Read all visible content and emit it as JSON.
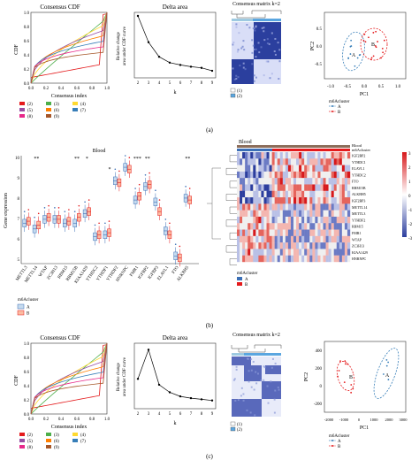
{
  "panel_a": {
    "label": "(a)",
    "cdf": {
      "title": "Consensus CDF",
      "xlabel": "Consensus index",
      "ylabel": "CDF",
      "xticks": [
        "0.0",
        "0.2",
        "0.4",
        "0.6",
        "0.8",
        "1.0"
      ],
      "yticks": [
        "0.0",
        "0.2",
        "0.4",
        "0.6",
        "0.8",
        "1.0"
      ],
      "legend": [
        "(2)",
        "(3)",
        "(4)",
        "(5)",
        "(6)",
        "(7)",
        "(8)",
        "(9)"
      ],
      "colors": [
        "#e41a1c",
        "#4daf4a",
        "#ffd92f",
        "#984ea3",
        "#ff7f00",
        "#377eb8",
        "#e7298a",
        "#a65628"
      ]
    },
    "delta": {
      "title": "Delta area",
      "xlabel": "k",
      "ylabel_line1": "Relative change",
      "ylabel_line2": "area under CDF curve",
      "xticks": [
        "2",
        "3",
        "4",
        "5",
        "6",
        "7",
        "8",
        "9"
      ],
      "values": [
        1.0,
        0.55,
        0.3,
        0.2,
        0.16,
        0.13,
        0.11,
        0.06
      ]
    },
    "matrix": {
      "title": "Consensus matrix k=2",
      "legend": [
        "(1)",
        "(2)"
      ]
    },
    "pca": {
      "xlabel": "PC1",
      "ylabel": "PC2",
      "xticks": [
        "-1.0",
        "-0.5",
        "0.0",
        "0.5",
        "1.0"
      ],
      "yticks": [
        "0.5",
        "0.0",
        "-0.5"
      ],
      "cluster_a": "A",
      "cluster_b": "B",
      "legend_title": "m6Acluster",
      "legend": [
        "A",
        "B"
      ]
    }
  },
  "panel_b": {
    "label": "(b)",
    "boxplot": {
      "title": "Blood",
      "ylabel": "Gene expression",
      "yticks": [
        "10",
        "9",
        "8",
        "7",
        "6",
        "5"
      ],
      "genes": [
        "METTL3",
        "METTL14",
        "WTAP",
        "ZC3H13",
        "RBM15",
        "RBM15B",
        "KIAA1429",
        "YTHDC2",
        "YTHDF1",
        "YTHDF2",
        "HNRNPC",
        "FMR1",
        "IGFBP2",
        "IGFBP3",
        "ELAVL1",
        "FTO",
        "ALKBH5"
      ],
      "significance": [
        "",
        "**",
        "",
        "",
        "",
        "**",
        "*",
        "",
        "",
        "",
        "",
        "***",
        "**",
        "",
        "",
        "",
        "**"
      ],
      "extra_sig": "*",
      "legend_title": "m6Acluster",
      "legend": [
        "A",
        "B"
      ]
    },
    "heatmap": {
      "title": "Blood",
      "annotation_label": "m6Acluster",
      "rows": [
        "IGF2BP2",
        "YTHDC1",
        "ELAVL1",
        "YTHDC2",
        "FTO",
        "RBM15B",
        "ALKBH5",
        "IGF2BP3",
        "METTL14",
        "METTL3",
        "YTHDF2",
        "RBM15",
        "FMR1",
        "WTAP",
        "ZC3H13",
        "KIAA1429",
        "HNRNPC"
      ],
      "scale": [
        "3",
        "2",
        "1",
        "0",
        "-1",
        "-2",
        "-3"
      ],
      "legend_title": "m6Acluster",
      "legend": [
        "A",
        "B"
      ]
    }
  },
  "panel_c": {
    "label": "(c)",
    "cdf": {
      "title": "Consensus CDF",
      "xlabel": "Consensus index",
      "ylabel": "CDF",
      "xticks": [
        "0.0",
        "0.2",
        "0.4",
        "0.6",
        "0.8",
        "1.0"
      ],
      "yticks": [
        "0.0",
        "0.2",
        "0.4",
        "0.6",
        "0.8",
        "1.0"
      ],
      "legend": [
        "(2)",
        "(3)",
        "(4)",
        "(5)",
        "(6)",
        "(7)",
        "(8)",
        "(9)"
      ]
    },
    "delta": {
      "title": "Delta area",
      "xlabel": "k",
      "ylabel_line1": "Relative change",
      "ylabel_line2": "area under CDF curve",
      "xticks": [
        "2",
        "3",
        "4",
        "5",
        "6",
        "7",
        "8",
        "9"
      ],
      "values": [
        0.45,
        0.95,
        0.35,
        0.22,
        0.15,
        0.12,
        0.1,
        0.08
      ]
    },
    "matrix": {
      "title": "Consensus matrix k=2",
      "legend": [
        "(1)",
        "(2)"
      ]
    },
    "pca": {
      "xlabel": "PC1",
      "ylabel": "PC2",
      "xticks": [
        "-2000",
        "-1000",
        "0",
        "1000",
        "2000",
        "3000"
      ],
      "yticks": [
        "400",
        "200",
        "0",
        "-200"
      ],
      "cluster_a": "A",
      "cluster_b": "B",
      "legend_title": "m6Acluster",
      "legend": [
        "A",
        "B"
      ]
    }
  }
}
